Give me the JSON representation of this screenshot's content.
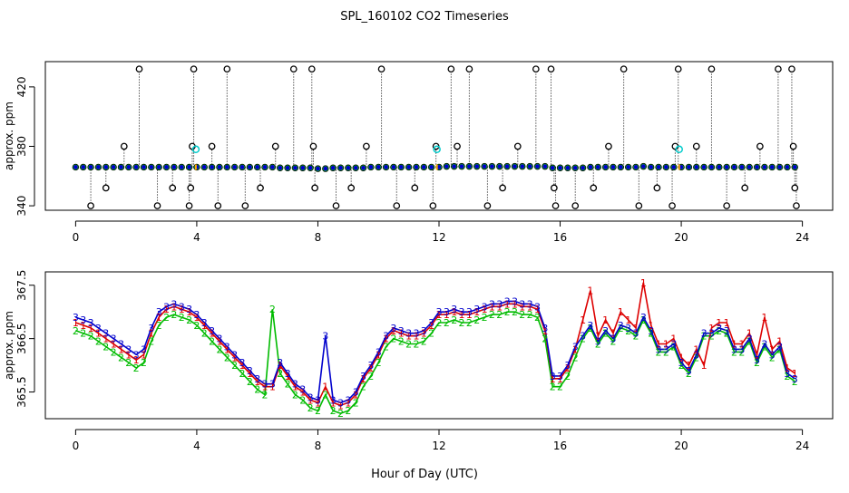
{
  "title": "SPL_160102  CO2 Timeseries",
  "xlabel": "Hour of Day (UTC)",
  "colors": {
    "black": "#000000",
    "blue": "#0000CC",
    "red": "#DD0000",
    "green": "#00BB00",
    "cyan": "#00CCCC",
    "orange": "#FFAA00"
  },
  "chart_data": [
    {
      "type": "scatter",
      "name": "top-panel",
      "ylabel": "approx. ppm",
      "xlim": [
        -1,
        25
      ],
      "ylim": [
        337,
        437
      ],
      "xticks": [
        0,
        4,
        8,
        12,
        16,
        20,
        24
      ],
      "yticks": [
        340,
        380,
        420
      ],
      "baseline_hours": [
        0.0,
        0.25,
        0.5,
        0.75,
        1.0,
        1.25,
        1.5,
        1.75,
        2.0,
        2.25,
        2.5,
        2.75,
        3.0,
        3.25,
        3.5,
        3.75,
        4.0,
        4.25,
        4.5,
        4.75,
        5.0,
        5.25,
        5.5,
        5.75,
        6.0,
        6.25,
        6.5,
        6.75,
        7.0,
        7.25,
        7.5,
        7.75,
        8.0,
        8.25,
        8.5,
        8.75,
        9.0,
        9.25,
        9.5,
        9.75,
        10.0,
        10.25,
        10.5,
        10.75,
        11.0,
        11.25,
        11.5,
        11.75,
        12.0,
        12.25,
        12.5,
        12.75,
        13.0,
        13.25,
        13.5,
        13.75,
        14.0,
        14.25,
        14.5,
        14.75,
        15.0,
        15.25,
        15.5,
        15.75,
        16.0,
        16.25,
        16.5,
        16.75,
        17.0,
        17.25,
        17.5,
        17.75,
        18.0,
        18.25,
        18.5,
        18.75,
        19.0,
        19.25,
        19.5,
        19.75,
        20.0,
        20.25,
        20.5,
        20.75,
        21.0,
        21.25,
        21.5,
        21.75,
        22.0,
        22.25,
        22.5,
        22.75,
        23.0,
        23.25,
        23.5,
        23.75
      ],
      "baseline_values": [
        366.0,
        366.0,
        366.0,
        366.0,
        366.0,
        366.0,
        366.0,
        366.0,
        366.0,
        366.0,
        366.0,
        366.0,
        366.0,
        366.0,
        366.0,
        366.0,
        366.0,
        366.0,
        366.0,
        366.0,
        366.0,
        366.0,
        366.0,
        366.0,
        366.0,
        366.0,
        366.0,
        365.5,
        365.5,
        365.5,
        365.5,
        365.5,
        365.0,
        365.0,
        365.5,
        365.5,
        365.5,
        365.5,
        365.5,
        366.0,
        366.0,
        366.0,
        366.0,
        366.0,
        366.0,
        366.0,
        366.0,
        366.0,
        366.0,
        366.5,
        366.5,
        366.5,
        366.5,
        366.5,
        366.5,
        366.5,
        366.5,
        366.5,
        366.5,
        366.5,
        366.5,
        366.5,
        366.5,
        365.5,
        365.5,
        365.5,
        365.5,
        365.5,
        366.0,
        366.0,
        366.0,
        366.0,
        366.0,
        366.0,
        366.0,
        366.5,
        366.0,
        366.0,
        366.0,
        366.0,
        366.0,
        366.0,
        366.0,
        366.0,
        366.0,
        366.0,
        366.0,
        366.0,
        366.0,
        366.0,
        366.0,
        366.0,
        366.0,
        366.0,
        366.0,
        366.0
      ],
      "outliers_x": [
        0.5,
        1.0,
        1.6,
        2.1,
        2.7,
        3.2,
        3.75,
        3.8,
        3.85,
        3.9,
        4.5,
        4.7,
        5.0,
        5.6,
        6.1,
        6.6,
        7.2,
        7.8,
        7.85,
        7.9,
        8.6,
        9.1,
        9.6,
        10.1,
        10.6,
        11.2,
        11.8,
        11.9,
        12.4,
        12.6,
        13.0,
        13.6,
        14.1,
        14.6,
        15.2,
        15.7,
        15.8,
        15.85,
        16.5,
        17.1,
        17.6,
        18.1,
        18.6,
        19.2,
        19.7,
        19.8,
        19.9,
        20.5,
        21.0,
        21.5,
        22.1,
        22.6,
        23.2,
        23.65,
        23.7,
        23.75,
        23.8
      ],
      "outliers_y": [
        340,
        352,
        380,
        432,
        340,
        352,
        340,
        352,
        380,
        432,
        380,
        340,
        432,
        340,
        352,
        380,
        432,
        432,
        380,
        352,
        340,
        352,
        380,
        432,
        340,
        352,
        340,
        380,
        432,
        380,
        432,
        340,
        352,
        380,
        432,
        432,
        352,
        340,
        340,
        352,
        380,
        432,
        340,
        352,
        340,
        380,
        432,
        380,
        432,
        340,
        352,
        380,
        432,
        432,
        380,
        352,
        340
      ],
      "calibration_x": [
        3.97,
        11.93,
        19.93
      ],
      "calibration_y": [
        378,
        378,
        378
      ]
    },
    {
      "type": "line",
      "name": "bottom-panel",
      "ylabel": "approx. ppm",
      "xlim": [
        -1,
        25
      ],
      "ylim": [
        365.0,
        367.75
      ],
      "xticks": [
        0,
        4,
        8,
        12,
        16,
        20,
        24
      ],
      "yticks": [
        365.5,
        366.5,
        367.5
      ],
      "x": [
        0.0,
        0.25,
        0.5,
        0.75,
        1.0,
        1.25,
        1.5,
        1.75,
        2.0,
        2.25,
        2.5,
        2.75,
        3.0,
        3.25,
        3.5,
        3.75,
        4.0,
        4.25,
        4.5,
        4.75,
        5.0,
        5.25,
        5.5,
        5.75,
        6.0,
        6.25,
        6.5,
        6.75,
        7.0,
        7.25,
        7.5,
        7.75,
        8.0,
        8.25,
        8.5,
        8.75,
        9.0,
        9.25,
        9.5,
        9.75,
        10.0,
        10.25,
        10.5,
        10.75,
        11.0,
        11.25,
        11.5,
        11.75,
        12.0,
        12.25,
        12.5,
        12.75,
        13.0,
        13.25,
        13.5,
        13.75,
        14.0,
        14.25,
        14.5,
        14.75,
        15.0,
        15.25,
        15.5,
        15.75,
        16.0,
        16.25,
        16.5,
        16.75,
        17.0,
        17.25,
        17.5,
        17.75,
        18.0,
        18.25,
        18.5,
        18.75,
        19.0,
        19.25,
        19.5,
        19.75,
        20.0,
        20.25,
        20.5,
        20.75,
        21.0,
        21.25,
        21.5,
        21.75,
        22.0,
        22.25,
        22.5,
        22.75,
        23.0,
        23.25,
        23.5,
        23.75
      ],
      "series": [
        {
          "name": "1",
          "color": "#DD0000",
          "values": [
            366.8,
            366.75,
            366.7,
            366.6,
            366.5,
            366.4,
            366.3,
            366.2,
            366.1,
            366.2,
            366.6,
            366.9,
            367.05,
            367.1,
            367.05,
            367.0,
            366.9,
            366.75,
            366.6,
            366.45,
            366.3,
            366.15,
            366.0,
            365.85,
            365.7,
            365.6,
            365.6,
            366.0,
            365.8,
            365.6,
            365.5,
            365.35,
            365.3,
            365.6,
            365.3,
            365.25,
            365.3,
            365.45,
            365.75,
            365.95,
            366.2,
            366.5,
            366.65,
            366.6,
            366.55,
            366.55,
            366.6,
            366.75,
            366.95,
            366.95,
            367.0,
            366.95,
            366.95,
            367.0,
            367.05,
            367.1,
            367.1,
            367.15,
            367.15,
            367.1,
            367.1,
            367.05,
            366.65,
            365.75,
            365.75,
            365.95,
            366.3,
            366.85,
            367.4,
            366.55,
            366.85,
            366.6,
            367.0,
            366.85,
            366.7,
            367.55,
            366.75,
            366.4,
            366.4,
            366.5,
            366.15,
            366.0,
            366.3,
            366.0,
            366.7,
            366.8,
            366.8,
            366.4,
            366.4,
            366.6,
            366.2,
            366.9,
            366.3,
            366.45,
            365.95,
            365.85
          ]
        },
        {
          "name": "2",
          "color": "#00BB00",
          "values": [
            366.65,
            366.6,
            366.55,
            366.45,
            366.35,
            366.25,
            366.15,
            366.05,
            365.95,
            366.05,
            366.45,
            366.75,
            366.9,
            366.95,
            366.9,
            366.85,
            366.75,
            366.6,
            366.45,
            366.3,
            366.15,
            366.0,
            365.85,
            365.7,
            365.55,
            365.45,
            367.05,
            365.85,
            365.65,
            365.45,
            365.35,
            365.2,
            365.15,
            365.45,
            365.15,
            365.1,
            365.15,
            365.3,
            365.6,
            365.8,
            366.05,
            366.35,
            366.5,
            366.45,
            366.4,
            366.4,
            366.45,
            366.6,
            366.8,
            366.8,
            366.85,
            366.8,
            366.8,
            366.85,
            366.9,
            366.95,
            366.95,
            367.0,
            367.0,
            366.95,
            366.95,
            366.9,
            366.5,
            365.6,
            365.6,
            365.8,
            366.15,
            366.5,
            366.7,
            366.4,
            366.6,
            366.45,
            366.7,
            366.65,
            366.55,
            366.85,
            366.6,
            366.25,
            366.25,
            366.35,
            366.0,
            365.85,
            366.15,
            366.55,
            366.55,
            366.65,
            366.6,
            366.25,
            366.25,
            366.45,
            366.05,
            366.35,
            366.15,
            366.3,
            365.8,
            365.7
          ]
        },
        {
          "name": "3",
          "color": "#0000CC",
          "values": [
            366.9,
            366.85,
            366.8,
            366.7,
            366.6,
            366.5,
            366.4,
            366.3,
            366.2,
            366.3,
            366.7,
            367.0,
            367.1,
            367.15,
            367.1,
            367.05,
            366.95,
            366.8,
            366.65,
            366.5,
            366.35,
            366.2,
            366.05,
            365.9,
            365.75,
            365.65,
            365.65,
            366.05,
            365.85,
            365.65,
            365.55,
            365.4,
            365.35,
            366.55,
            365.35,
            365.3,
            365.35,
            365.5,
            365.8,
            366.0,
            366.25,
            366.55,
            366.7,
            366.65,
            366.6,
            366.6,
            366.65,
            366.8,
            367.0,
            367.0,
            367.05,
            367.0,
            367.0,
            367.05,
            367.1,
            367.15,
            367.15,
            367.2,
            367.2,
            367.15,
            367.15,
            367.1,
            366.7,
            365.8,
            365.8,
            366.0,
            366.35,
            366.55,
            366.75,
            366.45,
            366.65,
            366.5,
            366.75,
            366.7,
            366.6,
            366.9,
            366.65,
            366.3,
            366.3,
            366.4,
            366.05,
            365.9,
            366.2,
            366.6,
            366.6,
            366.7,
            366.65,
            366.3,
            366.3,
            366.5,
            366.1,
            366.4,
            366.2,
            366.35,
            365.85,
            365.75
          ]
        }
      ]
    }
  ]
}
